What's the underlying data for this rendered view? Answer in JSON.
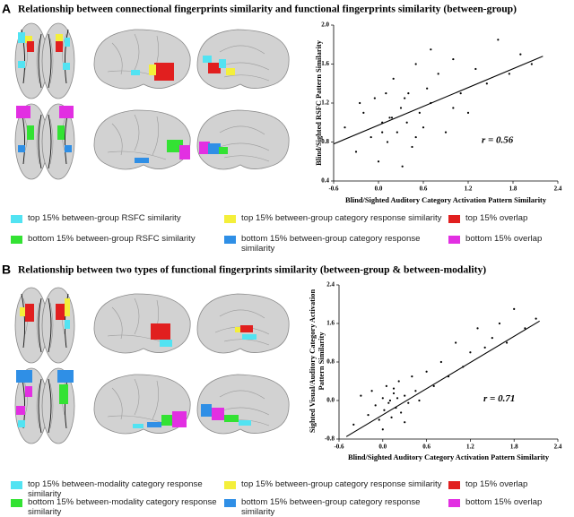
{
  "panels": [
    {
      "letter": "A",
      "title": "Relationship between connectional fingerprints similarity and functional fingerprints similarity (between-group)",
      "legend": [
        {
          "label": "top 15% between-group RSFC similarity",
          "color": "#52e3f2"
        },
        {
          "label": "top 15% between-group category response similarity",
          "color": "#f4ef3a"
        },
        {
          "label": "top 15% overlap",
          "color": "#e11f1f"
        },
        {
          "label": "bottom 15% between-group RSFC similarity",
          "color": "#33e233"
        },
        {
          "label": "bottom 15% between-group category response similarity",
          "color": "#2f8fe6"
        },
        {
          "label": "bottom 15% overlap",
          "color": "#e22fe2"
        }
      ]
    },
    {
      "letter": "B",
      "title": "Relationship between two types of functional fingerprints similarity (between-group & between-modality)",
      "legend": [
        {
          "label": "top 15% between-modality category response similarity",
          "color": "#52e3f2"
        },
        {
          "label": "top 15% between-group category response similarity",
          "color": "#f4ef3a"
        },
        {
          "label": "top 15% overlap",
          "color": "#e11f1f"
        },
        {
          "label": "bottom 15% between-modality category response similarity",
          "color": "#33e233"
        },
        {
          "label": "bottom 15% between-group category response similarity",
          "color": "#2f8fe6"
        },
        {
          "label": "bottom 15% overlap",
          "color": "#e22fe2"
        }
      ]
    }
  ],
  "chart_data": [
    {
      "type": "scatter",
      "xlabel": "Blind/Sighted Auditory Category Activation Pattern Similarity",
      "ylabel": "Blind/Sighted RSFC Pattern Similarity",
      "annotation": "r = 0.56",
      "color": "#000000",
      "xlim": [
        -0.6,
        2.4
      ],
      "ylim": [
        0.4,
        2.0
      ],
      "xticks": [
        -0.6,
        {
          "value": 0,
          "label": "0.0"
        },
        0.6,
        1.2,
        1.8,
        2.4
      ],
      "yticks": [
        0.4,
        0.8,
        1.2,
        1.6,
        {
          "value": 2,
          "label": "2.0"
        }
      ],
      "x": [
        -0.45,
        -0.3,
        -0.2,
        -0.1,
        -0.05,
        0.0,
        0.05,
        0.1,
        0.12,
        0.18,
        0.2,
        0.25,
        0.3,
        0.32,
        0.38,
        0.4,
        0.45,
        0.5,
        0.55,
        0.6,
        0.65,
        0.7,
        0.8,
        0.9,
        1.0,
        1.1,
        1.2,
        1.3,
        1.45,
        1.6,
        1.75,
        1.9,
        2.05,
        0.15,
        0.35,
        0.5,
        0.05,
        0.7,
        -0.25,
        1.0
      ],
      "y": [
        0.95,
        0.7,
        1.1,
        0.85,
        1.25,
        0.6,
        1.0,
        1.3,
        0.8,
        1.05,
        1.45,
        0.9,
        1.15,
        0.55,
        1.0,
        1.3,
        0.75,
        1.6,
        1.1,
        0.95,
        1.35,
        1.2,
        1.5,
        0.9,
        1.65,
        1.3,
        1.1,
        1.55,
        1.4,
        1.85,
        1.5,
        1.7,
        1.6,
        1.05,
        1.25,
        0.85,
        0.9,
        1.75,
        1.2,
        1.15
      ],
      "fit_line": {
        "x": [
          -0.6,
          2.2
        ],
        "y": [
          0.78,
          1.68
        ]
      }
    },
    {
      "type": "scatter",
      "xlabel": "Blind/Sighted Auditory Category Activation Pattern Similarity",
      "ylabel": [
        "Sighted Visual/Auditory Category Activation",
        "Pattern Similarity"
      ],
      "annotation": "r = 0.71",
      "color": "#000000",
      "xlim": [
        -0.6,
        2.4
      ],
      "ylim": [
        -0.8,
        2.4
      ],
      "xticks": [
        -0.6,
        {
          "value": 0,
          "label": "0.0"
        },
        0.6,
        1.2,
        1.8,
        2.4
      ],
      "yticks": [
        -0.8,
        {
          "value": 0,
          "label": "0.0"
        },
        0.8,
        1.6,
        2.4
      ],
      "x": [
        -0.4,
        -0.3,
        -0.2,
        -0.15,
        -0.1,
        -0.05,
        0.0,
        0.02,
        0.05,
        0.08,
        0.1,
        0.12,
        0.15,
        0.18,
        0.2,
        0.22,
        0.25,
        0.3,
        0.35,
        0.4,
        0.45,
        0.5,
        0.6,
        0.7,
        0.8,
        0.9,
        1.0,
        1.1,
        1.2,
        1.3,
        1.4,
        1.5,
        1.6,
        1.7,
        1.8,
        1.95,
        2.1,
        0.3,
        0.0,
        0.15
      ],
      "y": [
        -0.5,
        0.1,
        -0.3,
        0.2,
        -0.1,
        -0.4,
        0.05,
        -0.2,
        0.3,
        -0.05,
        0.0,
        -0.35,
        0.15,
        -0.15,
        0.05,
        0.4,
        -0.25,
        0.1,
        -0.05,
        0.5,
        0.2,
        0.0,
        0.6,
        0.3,
        0.8,
        0.5,
        1.2,
        0.7,
        1.0,
        1.5,
        1.1,
        1.3,
        1.6,
        1.2,
        1.9,
        1.5,
        1.7,
        -0.45,
        -0.6,
        0.25
      ],
      "fit_line": {
        "x": [
          -0.5,
          2.15
        ],
        "y": [
          -0.75,
          1.65
        ]
      }
    }
  ]
}
